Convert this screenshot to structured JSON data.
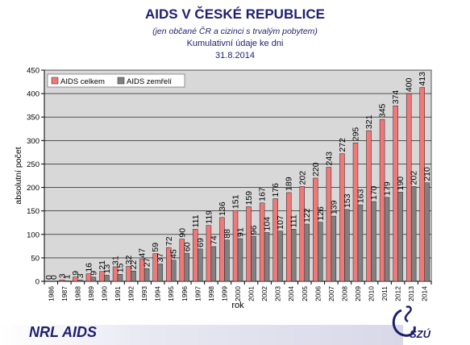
{
  "header": {
    "title": "AIDS V ČESKÉ REPUBLICE",
    "subtitle": "(jen občané ČR a cizinci s trvalým pobytem)",
    "cumulative_note": "Kumulativní údaje ke dni",
    "date": "31.8.2014"
  },
  "footer": {
    "org": "NRL AIDS",
    "logo_text": "SZÚ"
  },
  "colors": {
    "aids_celkem": "#f07878",
    "aids_zemreli": "#808080",
    "plot_background": "#d8d8d8",
    "title_text": "#1f1f6e"
  },
  "chart_data": {
    "type": "bar",
    "title": "",
    "xlabel": "rok",
    "ylabel": "absolutní počet",
    "ylim": [
      0,
      450
    ],
    "yticks": [
      0,
      50,
      100,
      150,
      200,
      250,
      300,
      350,
      400,
      450
    ],
    "grid": true,
    "legend_position": "top-left",
    "categories": [
      "1986",
      "1987",
      "1988",
      "1989",
      "1990",
      "1991",
      "1992",
      "1993",
      "1994",
      "1995",
      "1996",
      "1997",
      "1998",
      "1999",
      "2000",
      "2001",
      "2002",
      "2003",
      "2004",
      "2005",
      "2006",
      "2007",
      "2008",
      "2009",
      "2010",
      "2011",
      "2012",
      "2013",
      "2014"
    ],
    "series": [
      {
        "name": "AIDS celkem",
        "color": "#f07878",
        "values": [
          0,
          3,
          9,
          16,
          21,
          31,
          32,
          47,
          59,
          72,
          90,
          111,
          119,
          136,
          151,
          159,
          167,
          176,
          189,
          202,
          220,
          243,
          272,
          295,
          321,
          345,
          374,
          400,
          413
        ]
      },
      {
        "name": "AIDS zemřelí",
        "color": "#808080",
        "values": [
          0,
          1,
          3,
          9,
          13,
          15,
          22,
          27,
          37,
          45,
          60,
          69,
          74,
          88,
          91,
          96,
          104,
          107,
          111,
          122,
          126,
          139,
          153,
          163,
          170,
          179,
          190,
          202,
          210
        ]
      }
    ]
  }
}
